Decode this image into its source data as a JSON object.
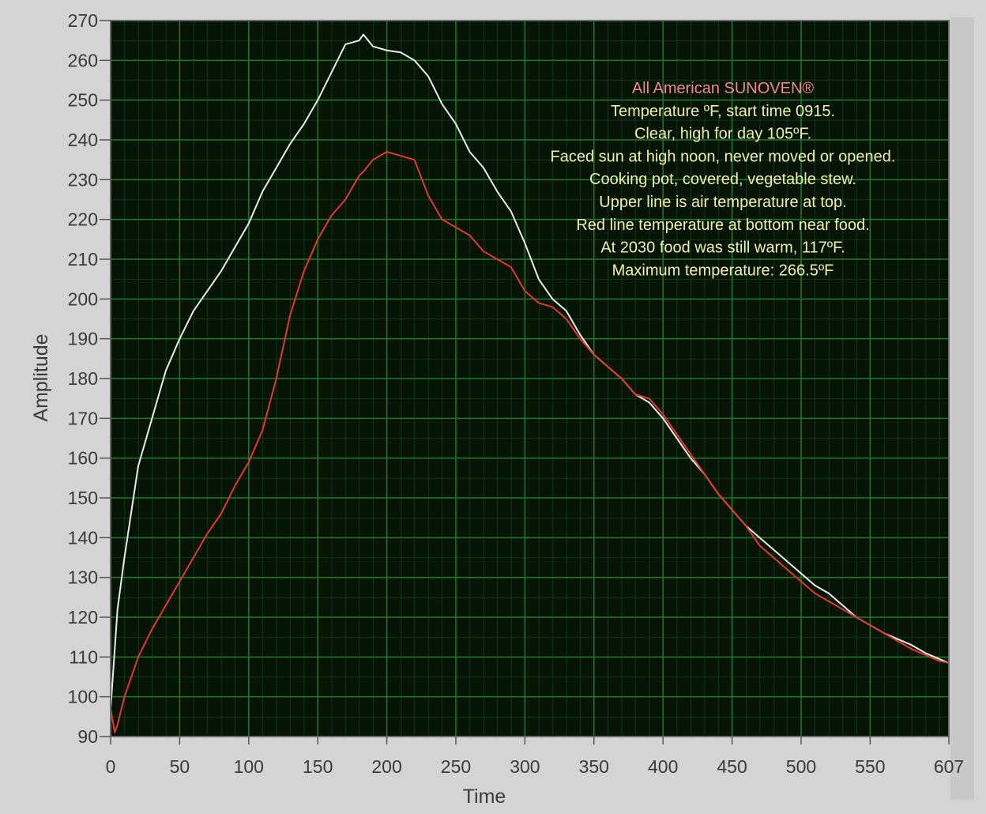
{
  "chart_data": {
    "type": "line",
    "xlabel": "Time",
    "ylabel": "Amplitude",
    "annotations": [
      "All American SUNOVEN®",
      "Temperature ºF, start time 0915.",
      "Clear, high for day 105ºF.",
      "Faced sun at high noon, never moved or opened.",
      "Cooking pot, covered, vegetable stew.",
      "Upper line is air temperature at top.",
      "Red line temperature at bottom near food.",
      "At 2030 food was still warm, 117ºF.",
      "Maximum temperature: 266.5ºF"
    ],
    "annotation_colors": [
      "#f08a8a",
      "#f0f0a8"
    ],
    "x": [
      0,
      3,
      5,
      10,
      20,
      30,
      40,
      50,
      60,
      70,
      80,
      90,
      100,
      110,
      120,
      130,
      140,
      150,
      160,
      170,
      180,
      183,
      190,
      200,
      210,
      220,
      230,
      240,
      250,
      260,
      270,
      280,
      290,
      300,
      310,
      320,
      330,
      340,
      350,
      360,
      370,
      380,
      390,
      400,
      410,
      420,
      430,
      440,
      450,
      460,
      470,
      480,
      490,
      500,
      510,
      520,
      530,
      540,
      550,
      560,
      570,
      580,
      590,
      600,
      607
    ],
    "series": [
      {
        "color": "#e8ece8",
        "values": [
          97,
          112,
          122,
          135,
          158,
          170,
          182,
          190,
          197,
          202,
          207,
          213,
          219,
          227,
          233,
          239,
          244,
          250,
          257,
          264,
          265,
          266.5,
          263.5,
          262.5,
          262,
          260,
          256,
          249,
          244,
          237,
          233,
          227,
          222,
          214,
          205,
          200,
          197,
          191,
          186,
          183,
          180,
          176,
          174,
          170,
          165,
          160,
          156,
          151,
          147,
          143,
          140,
          137,
          134,
          131,
          128,
          126,
          123,
          120,
          118,
          116,
          114.5,
          113,
          111,
          109.5,
          108.5
        ]
      },
      {
        "color": "#e03a30",
        "values": [
          97,
          91,
          93,
          100,
          110,
          117,
          123,
          129,
          135,
          141,
          146,
          153,
          159,
          167,
          180,
          196,
          207,
          215,
          221,
          225,
          231,
          232,
          235,
          237,
          236,
          235,
          226,
          220,
          218,
          216,
          212,
          210,
          208,
          202,
          199,
          198,
          195,
          190,
          186,
          183,
          180,
          176,
          175,
          171,
          166,
          161,
          156,
          151,
          147,
          143,
          138,
          135,
          132,
          129,
          126,
          124,
          122,
          120,
          118,
          116,
          114,
          112,
          110.5,
          109,
          108.5
        ]
      }
    ],
    "xlim": [
      0,
      607
    ],
    "ylim": [
      90,
      270
    ],
    "xticks": [
      0,
      50,
      100,
      150,
      200,
      250,
      300,
      350,
      400,
      450,
      500,
      550,
      607
    ],
    "yticks": [
      90,
      100,
      110,
      120,
      130,
      140,
      150,
      160,
      170,
      180,
      190,
      200,
      210,
      220,
      230,
      240,
      250,
      260,
      270
    ],
    "grid": true,
    "background": "#061406",
    "grid_color": "#1f7a2a"
  }
}
